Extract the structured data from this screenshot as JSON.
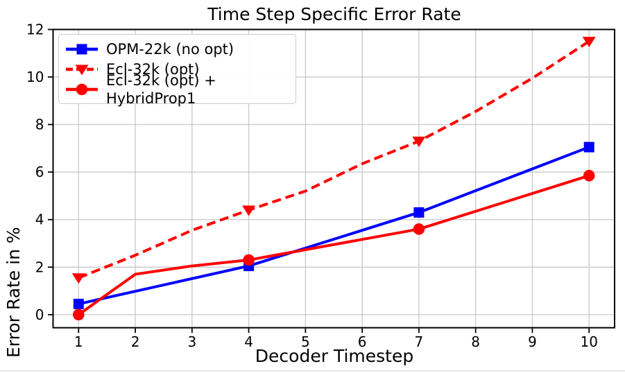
{
  "chart_data": {
    "type": "line",
    "title": "Time Step Specific Error Rate",
    "xlabel": "Decoder Timestep",
    "ylabel": "Error Rate in %",
    "xlim": [
      0.55,
      10.45
    ],
    "ylim": [
      -0.55,
      12.0
    ],
    "x_ticks": [
      1,
      2,
      3,
      4,
      5,
      6,
      7,
      8,
      9,
      10
    ],
    "y_ticks": [
      0,
      2,
      4,
      6,
      8,
      10,
      12
    ],
    "grid": true,
    "grid_color": "#c8c8c8",
    "legend_position": "upper left",
    "series": [
      {
        "name": "OPM-22k (no opt)",
        "color": "#0000ff",
        "line_style": "solid",
        "marker": "square",
        "x": [
          1,
          4,
          7,
          10
        ],
        "y": [
          0.45,
          2.05,
          4.3,
          7.05
        ],
        "marker_x": [
          1,
          4,
          7,
          10
        ]
      },
      {
        "name": "Ecl-32k (opt)",
        "color": "#ff0000",
        "line_style": "dashed",
        "marker": "triangle-down",
        "x": [
          1,
          2,
          3,
          4,
          5,
          6,
          7,
          8,
          9,
          10
        ],
        "y": [
          1.55,
          2.5,
          3.55,
          4.4,
          5.2,
          6.35,
          7.3,
          8.55,
          9.95,
          11.5
        ],
        "marker_x": [
          1,
          4,
          7,
          10
        ]
      },
      {
        "name": "Ecl-32k (opt) + HybridProp1",
        "color": "#ff0000",
        "line_style": "solid",
        "marker": "circle",
        "x": [
          1,
          2,
          3,
          4,
          7,
          10
        ],
        "y": [
          0.0,
          1.7,
          2.05,
          2.3,
          3.6,
          5.85
        ],
        "marker_x": [
          1,
          4,
          7,
          10
        ]
      }
    ]
  }
}
